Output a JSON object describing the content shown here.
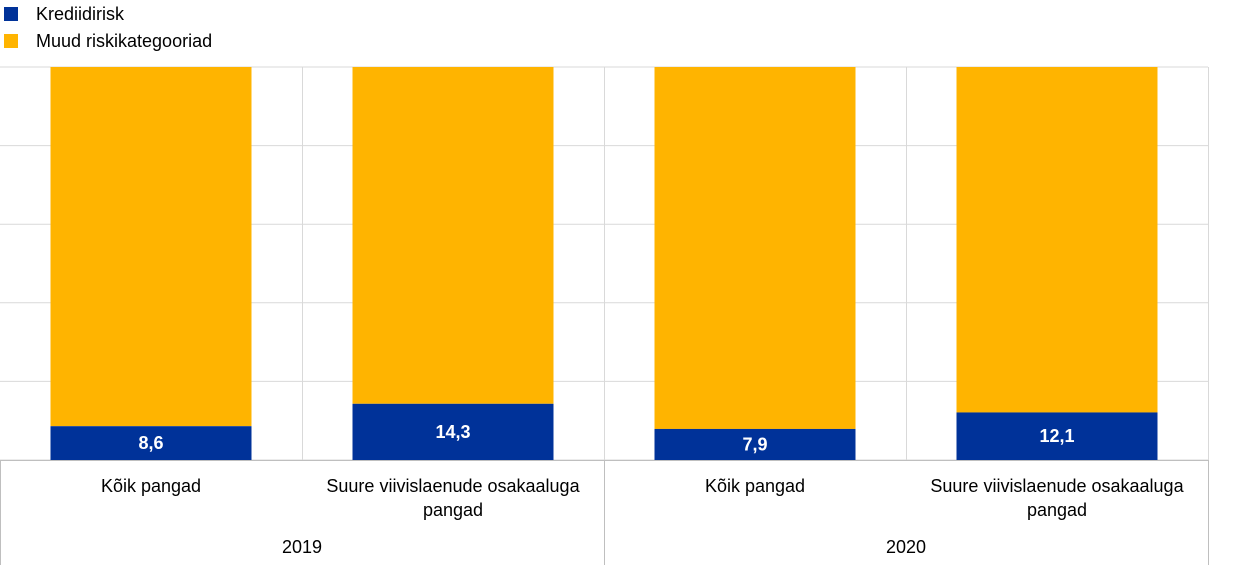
{
  "chart_data": {
    "type": "bar",
    "stacked": true,
    "percent_stacked": true,
    "groups": [
      {
        "label": "2019",
        "categories": [
          "Kõik pangad",
          "Suure viivislaenude osakaaluga pangad"
        ]
      },
      {
        "label": "2020",
        "categories": [
          "Kõik pangad",
          "Suure viivislaenude osakaaluga pangad"
        ]
      }
    ],
    "categories": [
      "Kõik pangad",
      "Suure viivislaenude osakaaluga pangad",
      "Kõik pangad",
      "Suure viivislaenude osakaaluga pangad"
    ],
    "series": [
      {
        "name": "Krediidirisk",
        "color": "#003299",
        "values": [
          8.6,
          14.3,
          7.9,
          12.1
        ],
        "labels": [
          "8,6",
          "14,3",
          "7,9",
          "12,1"
        ]
      },
      {
        "name": "Muud riskikategooriad",
        "color": "#FFB400",
        "values": [
          91.4,
          85.7,
          92.1,
          87.9
        ]
      }
    ],
    "ylim": [
      0,
      100
    ],
    "y_gridlines": [
      0,
      20,
      40,
      60,
      80,
      100
    ],
    "grid": true,
    "legend_position": "top-left",
    "xlabel": "",
    "ylabel": "",
    "title": ""
  }
}
